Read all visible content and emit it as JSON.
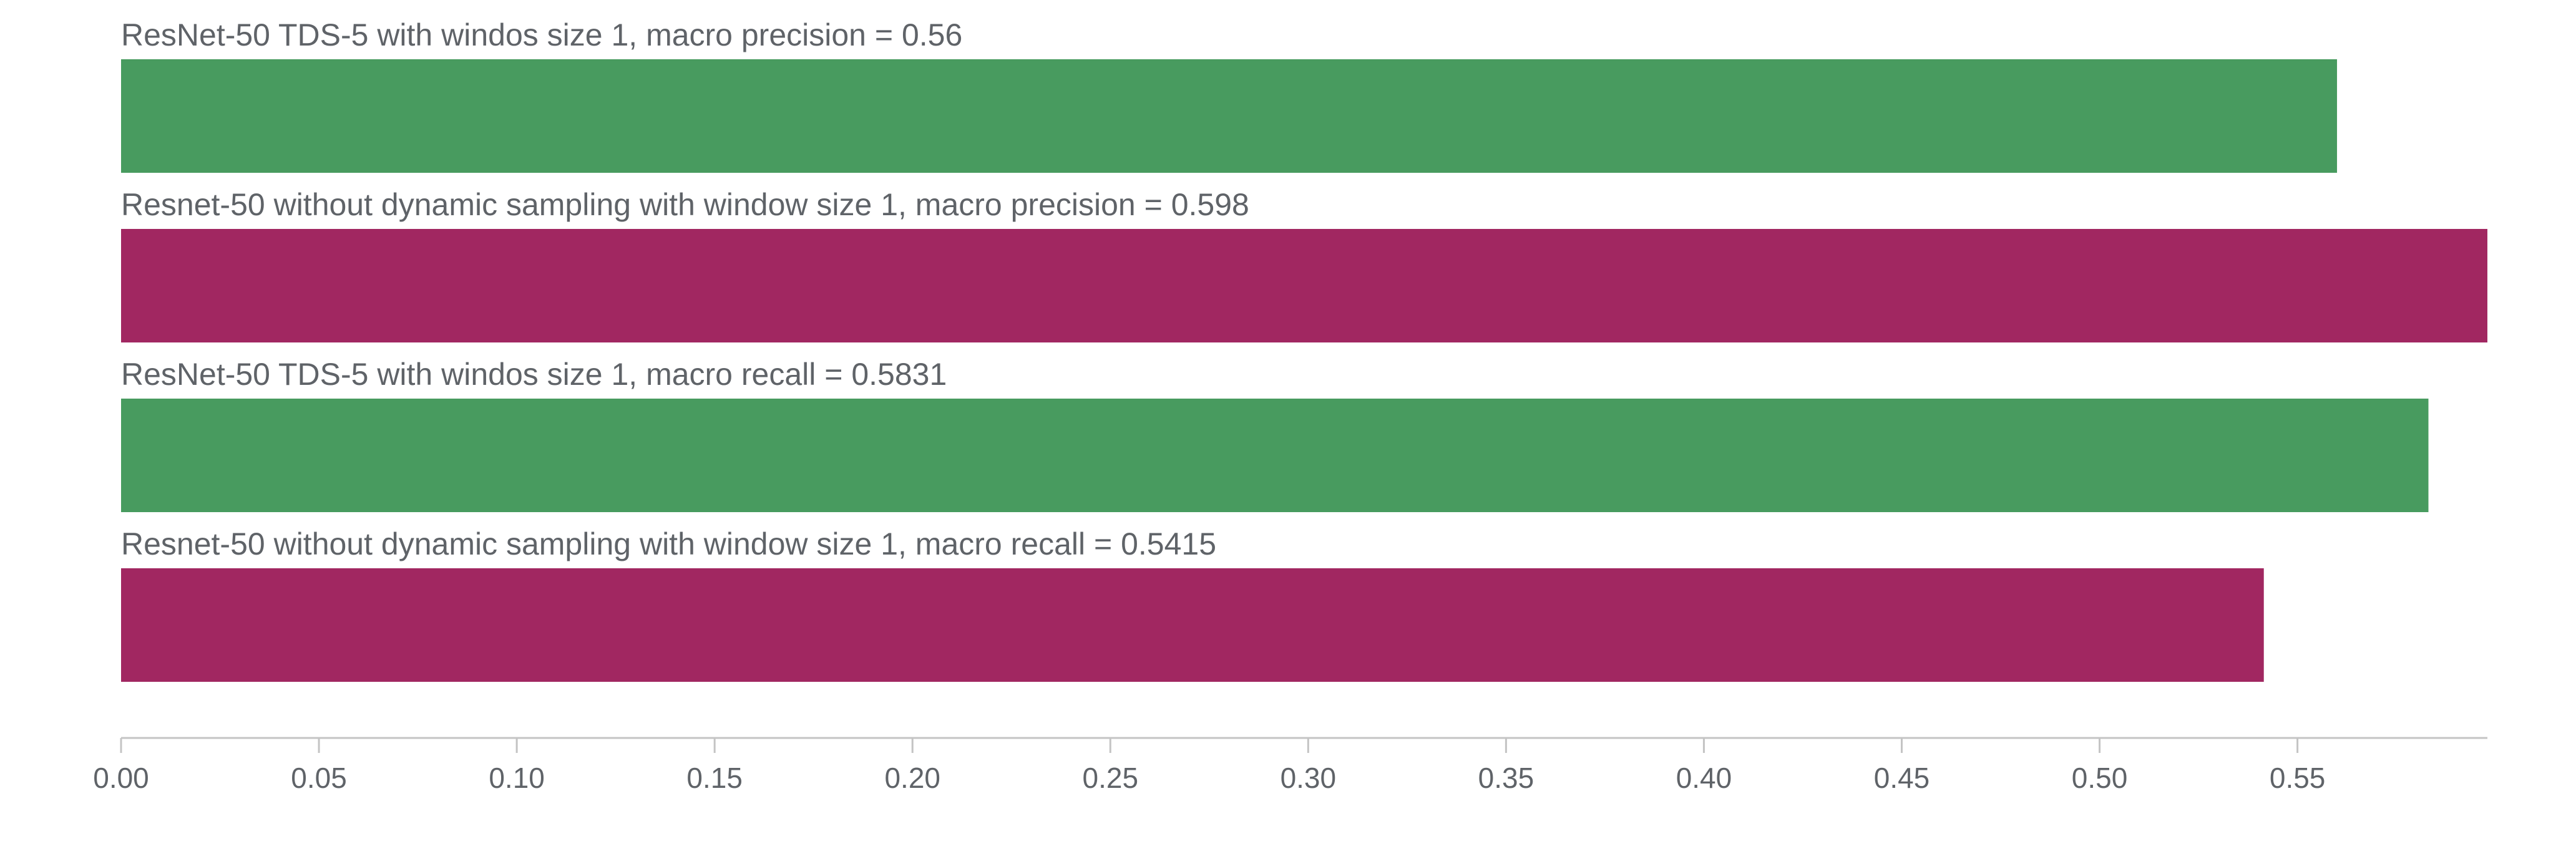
{
  "chart_data": {
    "type": "bar",
    "orientation": "horizontal",
    "title": "",
    "xlabel": "",
    "ylabel": "",
    "xlim": [
      0,
      0.598
    ],
    "grid": false,
    "legend": "none",
    "x_ticks": [
      "0.00",
      "0.05",
      "0.10",
      "0.15",
      "0.20",
      "0.25",
      "0.30",
      "0.35",
      "0.40",
      "0.45",
      "0.50",
      "0.55"
    ],
    "bars": [
      {
        "label": "ResNet-50 TDS-5 with windos size 1, macro precision = 0.56",
        "value": 0.56,
        "color": "#489b5f"
      },
      {
        "label": "Resnet-50 without dynamic sampling with window size 1, macro precision = 0.598",
        "value": 0.598,
        "color": "#a12761"
      },
      {
        "label": "ResNet-50 TDS-5 with windos size 1, macro recall = 0.5831",
        "value": 0.5831,
        "color": "#489b5f"
      },
      {
        "label": "Resnet-50 without dynamic sampling with window size 1, macro recall = 0.5415",
        "value": 0.5415,
        "color": "#a12761"
      }
    ]
  }
}
